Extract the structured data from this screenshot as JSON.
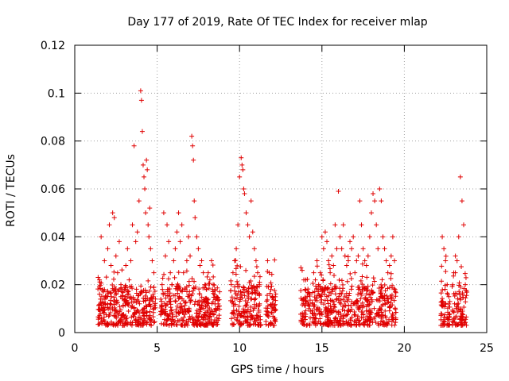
{
  "chart_data": {
    "type": "scatter",
    "title": "Day 177 of 2019, Rate Of TEC Index for receiver mlap",
    "xlabel": "GPS time / hours",
    "ylabel": "ROTI / TECUs",
    "xlim": [
      0,
      25
    ],
    "ylim": [
      0,
      0.12
    ],
    "xticks": [
      0,
      5,
      10,
      15,
      20,
      25
    ],
    "xtick_labels": [
      "0",
      "5",
      "10",
      "15",
      "20",
      "25"
    ],
    "yticks": [
      0,
      0.02,
      0.04,
      0.06,
      0.08,
      0.1,
      0.12
    ],
    "ytick_labels": [
      "0",
      "0.02",
      "0.04",
      "0.06",
      "0.08",
      "0.1",
      "0.12"
    ],
    "grid": true,
    "marker": "plus",
    "color": "#e00000",
    "series": [
      {
        "name": "ROTI",
        "x": [
          1.5,
          1.6,
          1.7,
          1.8,
          1.9,
          2.0,
          2.1,
          2.2,
          2.3,
          2.4,
          2.5,
          2.6,
          2.7,
          2.8,
          2.9,
          3.0,
          3.1,
          3.2,
          3.3,
          3.4,
          3.5,
          3.6,
          3.7,
          3.8,
          3.9,
          4.0,
          4.05,
          4.1,
          4.15,
          4.2,
          4.25,
          4.3,
          4.35,
          4.4,
          4.45,
          4.5,
          4.55,
          4.6,
          4.7,
          4.8,
          5.3,
          5.4,
          5.5,
          5.6,
          5.7,
          5.8,
          5.9,
          6.0,
          6.1,
          6.2,
          6.3,
          6.4,
          6.5,
          6.6,
          6.7,
          6.8,
          6.9,
          7.0,
          7.1,
          7.15,
          7.2,
          7.25,
          7.3,
          7.4,
          7.5,
          7.6,
          7.7,
          7.8,
          7.9,
          8.0,
          8.1,
          8.2,
          8.3,
          8.4,
          8.5,
          8.6,
          8.7,
          9.5,
          9.6,
          9.7,
          9.8,
          9.9,
          10.0,
          10.1,
          10.15,
          10.2,
          10.25,
          10.3,
          10.4,
          10.5,
          10.6,
          10.7,
          10.8,
          10.9,
          11.0,
          11.1,
          11.2,
          11.7,
          11.8,
          11.9,
          12.0,
          12.1,
          13.8,
          13.9,
          14.0,
          14.1,
          14.2,
          14.5,
          14.6,
          14.7,
          14.8,
          14.9,
          15.0,
          15.1,
          15.2,
          15.3,
          15.4,
          15.5,
          15.6,
          15.7,
          15.8,
          15.9,
          16.0,
          16.1,
          16.2,
          16.3,
          16.4,
          16.5,
          16.6,
          16.7,
          16.8,
          16.9,
          17.0,
          17.1,
          17.2,
          17.3,
          17.4,
          17.5,
          17.6,
          17.7,
          17.8,
          17.9,
          18.0,
          18.1,
          18.2,
          18.3,
          18.4,
          18.5,
          18.6,
          18.7,
          18.8,
          18.9,
          19.0,
          19.1,
          19.2,
          19.3,
          19.4,
          22.3,
          22.4,
          22.5,
          22.6,
          22.7,
          23.0,
          23.1,
          23.2,
          23.3,
          23.4,
          23.5,
          23.6,
          23.7
        ],
        "y": [
          0.022,
          0.04,
          0.018,
          0.03,
          0.015,
          0.035,
          0.045,
          0.028,
          0.05,
          0.048,
          0.032,
          0.025,
          0.038,
          0.02,
          0.015,
          0.018,
          0.028,
          0.035,
          0.022,
          0.03,
          0.045,
          0.078,
          0.038,
          0.042,
          0.055,
          0.101,
          0.097,
          0.084,
          0.07,
          0.065,
          0.06,
          0.05,
          0.072,
          0.068,
          0.045,
          0.04,
          0.052,
          0.035,
          0.03,
          0.025,
          0.02,
          0.05,
          0.032,
          0.045,
          0.038,
          0.025,
          0.02,
          0.03,
          0.035,
          0.042,
          0.05,
          0.038,
          0.045,
          0.025,
          0.018,
          0.03,
          0.04,
          0.032,
          0.082,
          0.078,
          0.072,
          0.055,
          0.048,
          0.04,
          0.035,
          0.028,
          0.03,
          0.025,
          0.02,
          0.018,
          0.025,
          0.022,
          0.03,
          0.02,
          0.018,
          0.015,
          0.012,
          0.02,
          0.025,
          0.03,
          0.035,
          0.045,
          0.065,
          0.073,
          0.07,
          0.068,
          0.06,
          0.058,
          0.05,
          0.045,
          0.04,
          0.055,
          0.042,
          0.035,
          0.03,
          0.025,
          0.02,
          0.03,
          0.025,
          0.018,
          0.015,
          0.01,
          0.026,
          0.022,
          0.018,
          0.015,
          0.01,
          0.025,
          0.022,
          0.03,
          0.02,
          0.025,
          0.04,
          0.035,
          0.042,
          0.038,
          0.03,
          0.025,
          0.032,
          0.028,
          0.045,
          0.035,
          0.059,
          0.04,
          0.035,
          0.045,
          0.032,
          0.028,
          0.03,
          0.038,
          0.035,
          0.04,
          0.025,
          0.03,
          0.032,
          0.055,
          0.045,
          0.035,
          0.03,
          0.028,
          0.032,
          0.04,
          0.05,
          0.058,
          0.055,
          0.045,
          0.035,
          0.06,
          0.055,
          0.04,
          0.035,
          0.03,
          0.025,
          0.028,
          0.032,
          0.04,
          0.03,
          0.04,
          0.035,
          0.03,
          0.02,
          0.015,
          0.025,
          0.032,
          0.03,
          0.04,
          0.065,
          0.055,
          0.045,
          0.02
        ],
        "band": {
          "comment": "dense bulk of samples between 0.003 and about 0.02 across each observation window (hours)",
          "windows": [
            [
              1.4,
              4.9
            ],
            [
              5.2,
              8.8
            ],
            [
              9.4,
              11.3
            ],
            [
              11.6,
              12.2
            ],
            [
              13.7,
              14.3
            ],
            [
              14.4,
              19.5
            ],
            [
              22.2,
              22.8
            ],
            [
              22.9,
              23.8
            ]
          ],
          "y_low": 0.003,
          "y_high": 0.02
        }
      }
    ]
  }
}
